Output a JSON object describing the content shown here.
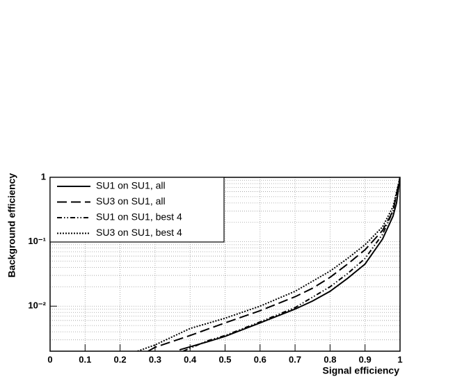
{
  "chart_data": {
    "type": "line",
    "x_label": "Signal efficiency",
    "y_label": "Background efficiency",
    "xlim": [
      0,
      1
    ],
    "ylim": [
      0.002,
      1
    ],
    "log_y": true,
    "grid": true,
    "legend_position": "upper-left",
    "xticks": [
      0,
      0.1,
      0.2,
      0.3,
      0.4,
      0.5,
      0.6,
      0.7,
      0.8,
      0.9,
      1
    ],
    "yticks": [
      1,
      {
        "value": 0.1,
        "label": "10⁻¹"
      },
      {
        "value": 0.01,
        "label": "10⁻²"
      }
    ],
    "yminorticks": [
      0.003,
      0.004,
      0.005,
      0.006,
      0.007,
      0.008,
      0.009,
      0.02,
      0.03,
      0.04,
      0.05,
      0.06,
      0.07,
      0.08,
      0.09,
      0.2,
      0.3,
      0.4,
      0.5,
      0.6,
      0.7,
      0.8,
      0.9
    ],
    "series": [
      {
        "name": "SU1 on SU1, all",
        "color": "#000000",
        "dash": "solid",
        "x": [
          0.37,
          0.45,
          0.5,
          0.6,
          0.7,
          0.75,
          0.8,
          0.85,
          0.9,
          0.95,
          0.98,
          0.99,
          1.0
        ],
        "y": [
          0.0021,
          0.0028,
          0.0034,
          0.0055,
          0.009,
          0.012,
          0.017,
          0.027,
          0.045,
          0.11,
          0.25,
          0.4,
          1.0
        ]
      },
      {
        "name": "SU3 on SU1, all",
        "color": "#000000",
        "dash": "dashed",
        "x": [
          0.28,
          0.3,
          0.4,
          0.5,
          0.6,
          0.7,
          0.75,
          0.8,
          0.85,
          0.9,
          0.95,
          0.98,
          1.0
        ],
        "y": [
          0.002,
          0.0023,
          0.0035,
          0.0055,
          0.0085,
          0.014,
          0.019,
          0.028,
          0.045,
          0.075,
          0.15,
          0.3,
          1.0
        ]
      },
      {
        "name": "SU1 on SU1, best 4",
        "color": "#000000",
        "dash": "dashdot",
        "x": [
          0.38,
          0.45,
          0.5,
          0.6,
          0.7,
          0.8,
          0.85,
          0.9,
          0.95,
          0.98,
          1.0
        ],
        "y": [
          0.002,
          0.0029,
          0.0035,
          0.0057,
          0.0095,
          0.02,
          0.032,
          0.055,
          0.13,
          0.3,
          1.0
        ]
      },
      {
        "name": "SU3 on SU1, best 4",
        "color": "#000000",
        "dash": "dotted",
        "x": [
          0.25,
          0.3,
          0.4,
          0.5,
          0.6,
          0.7,
          0.8,
          0.85,
          0.9,
          0.95,
          0.98,
          1.0
        ],
        "y": [
          0.002,
          0.0025,
          0.0045,
          0.0065,
          0.01,
          0.017,
          0.035,
          0.055,
          0.09,
          0.17,
          0.35,
          1.0
        ]
      }
    ]
  }
}
